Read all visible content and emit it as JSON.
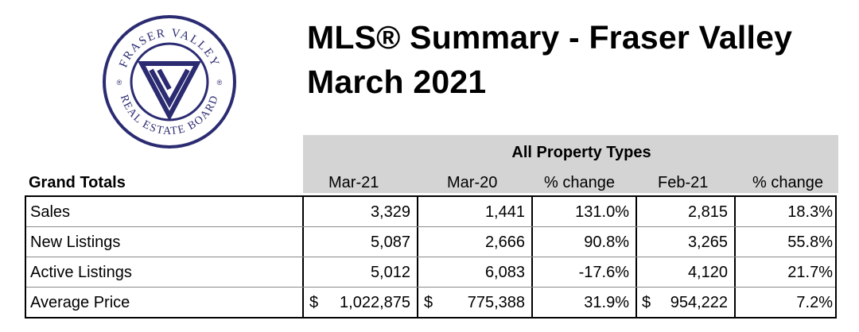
{
  "logo": {
    "top_text": "FRASER VALLEY",
    "bottom_text": "REAL ESTATE BOARD",
    "colors": {
      "navy": "#2b2b72",
      "ring": "#2b2b72"
    }
  },
  "title": {
    "line1": "MLS® Summary - Fraser Valley",
    "line2": "March 2021"
  },
  "table": {
    "group_header": "All Property Types",
    "row_header": "Grand Totals",
    "columns": [
      "Mar-21",
      "Mar-20",
      "% change",
      "Feb-21",
      "% change"
    ],
    "rows": [
      {
        "label": "Sales",
        "mar21": "3,329",
        "mar20": "1,441",
        "chg1": "131.0%",
        "feb21": "2,815",
        "chg2": "18.3%"
      },
      {
        "label": "New Listings",
        "mar21": "5,087",
        "mar20": "2,666",
        "chg1": "90.8%",
        "feb21": "3,265",
        "chg2": "55.8%"
      },
      {
        "label": "Active Listings",
        "mar21": "5,012",
        "mar20": "6,083",
        "chg1": "-17.6%",
        "feb21": "4,120",
        "chg2": "21.7%"
      },
      {
        "label": "Average Price",
        "currency": "$",
        "mar21": "1,022,875",
        "mar20": "775,388",
        "chg1": "31.9%",
        "feb21": "954,222",
        "chg2": "7.2%"
      }
    ],
    "colors": {
      "header_fill": "#d4d4d4"
    }
  }
}
